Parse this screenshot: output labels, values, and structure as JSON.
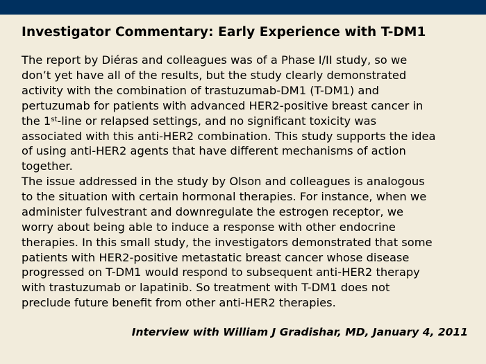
{
  "colors": {
    "header_bar": "#00305f",
    "background": "#f2ecdc"
  },
  "title": "Investigator Commentary: Early Experience with T-DM1",
  "paragraph1": {
    "lines": [
      "The report by Diéras and colleagues was of a Phase I/II study, so we",
      "don’t yet have all of the results, but the study clearly demonstrated",
      "activity with the combination of trastuzumab-DM1 (T-DM1) and",
      "pertuzumab for patients with advanced HER2-positive breast cancer in"
    ],
    "line5_pre": "the 1",
    "line5_sup": "st",
    "line5_post": "-line or relapsed settings, and no significant toxicity was",
    "lines_after": [
      "associated with this anti-HER2 combination. This study supports the idea",
      "of using anti-HER2 agents that have different mechanisms of action",
      "together."
    ]
  },
  "paragraph2": {
    "lines": [
      "The issue addressed in the study by Olson and colleagues is analogous",
      "to the situation with certain hormonal therapies. For instance, when we",
      "administer fulvestrant and downregulate the estrogen receptor, we",
      "worry about being able to induce a response with other endocrine",
      "therapies. In this small study, the investigators demonstrated that some",
      "patients with HER2-positive metastatic breast cancer whose disease",
      "progressed on T-DM1 would respond to subsequent anti-HER2 therapy",
      "with trastuzumab or lapatinib. So treatment with T-DM1 does not",
      "preclude future benefit from other anti-HER2 therapies."
    ]
  },
  "credit": "Interview with William J Gradishar, MD, January 4, 2011"
}
